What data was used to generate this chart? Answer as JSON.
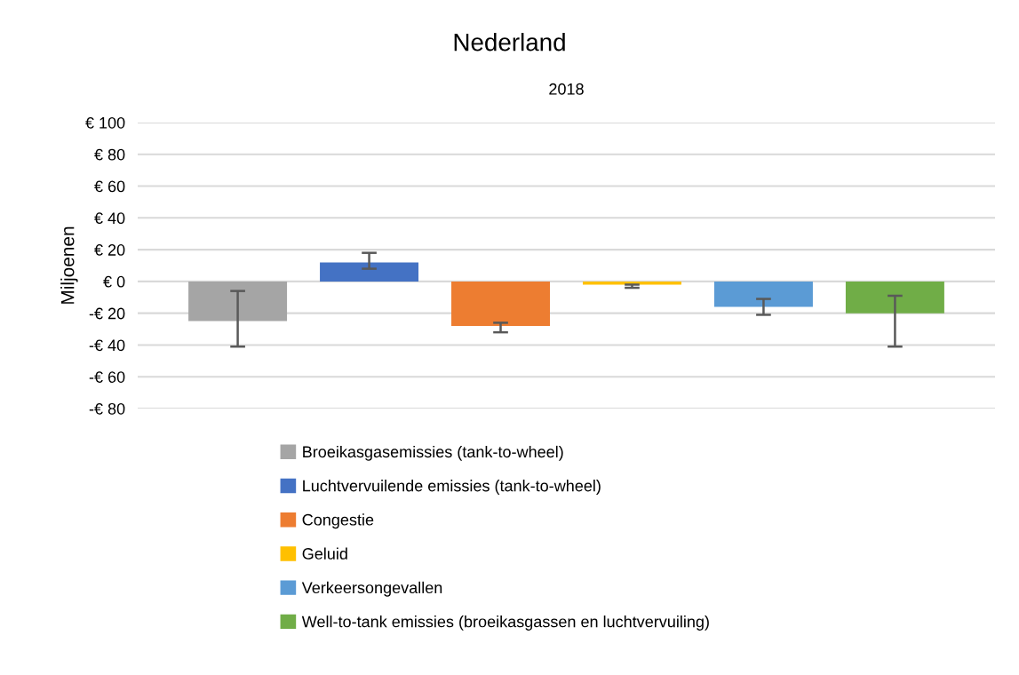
{
  "chart_data": {
    "type": "bar",
    "title": "Nederland",
    "ylabel": "Miljoenen",
    "categories": [
      "2018"
    ],
    "series": [
      {
        "name": "Broeikasgasemissies (tank-to-wheel)",
        "color": "#a5a5a5",
        "values": [
          -25
        ],
        "errors": [
          [
            -41,
            -6
          ]
        ]
      },
      {
        "name": "Luchtvervuilende emissies (tank-to-wheel)",
        "color": "#4472c4",
        "values": [
          12
        ],
        "errors": [
          [
            8,
            18
          ]
        ]
      },
      {
        "name": "Congestie",
        "color": "#ed7d31",
        "values": [
          -28
        ],
        "errors": [
          [
            -32,
            -26
          ]
        ]
      },
      {
        "name": "Geluid",
        "color": "#ffc000",
        "values": [
          -2
        ],
        "errors": [
          [
            -4,
            -2
          ]
        ]
      },
      {
        "name": "Verkeersongevallen",
        "color": "#5b9bd5",
        "values": [
          -16
        ],
        "errors": [
          [
            -21,
            -11
          ]
        ]
      },
      {
        "name": "Well-to-tank emissies (broeikasgassen en luchtvervuiling)",
        "color": "#70ad47",
        "values": [
          -20
        ],
        "errors": [
          [
            -41,
            -9
          ]
        ]
      }
    ],
    "ylim": [
      -80,
      100
    ],
    "yticks": [
      {
        "value": -80,
        "label": "-€ 80"
      },
      {
        "value": -60,
        "label": "-€ 60"
      },
      {
        "value": -40,
        "label": "-€ 40"
      },
      {
        "value": -20,
        "label": "-€ 20"
      },
      {
        "value": 0,
        "label": "€ 0"
      },
      {
        "value": 20,
        "label": "€ 20"
      },
      {
        "value": 40,
        "label": "€ 40"
      },
      {
        "value": 60,
        "label": "€ 60"
      },
      {
        "value": 80,
        "label": "€ 80"
      },
      {
        "value": 100,
        "label": "€ 100"
      }
    ],
    "grid": "y",
    "legend": "bottom"
  }
}
